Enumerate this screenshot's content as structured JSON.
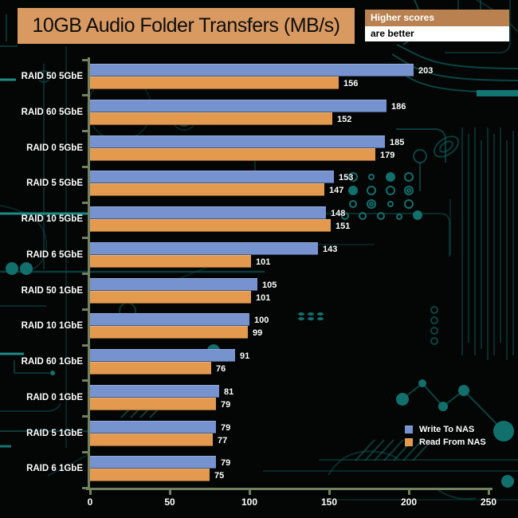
{
  "title": "10GB Audio Folder Transfers (MB/s)",
  "note": {
    "line1": "Higher scores",
    "line2": "are better"
  },
  "legend": {
    "write": "Write To NAS",
    "read": "Read From NAS"
  },
  "colors": {
    "write_bar": "#7793CF",
    "read_bar": "#E39A4E",
    "axis": "#72815F",
    "title_bg": "#D99A62",
    "note_top_bg": "#B8814F",
    "background": "#040505",
    "circuit_teal": "#0D5452"
  },
  "chart_data": {
    "type": "bar",
    "orientation": "horizontal",
    "title": "10GB Audio Folder Transfers (MB/s)",
    "categories": [
      "RAID 50 5GbE",
      "RAID 60 5GbE",
      "RAID 0 5GbE",
      "RAID 5 5GbE",
      "RAID 10 5GbE",
      "RAID 6 5GbE",
      "RAID 50 1GbE",
      "RAID 10 1GbE",
      "RAID 60 1GbE",
      "RAID 0 1GbE",
      "RAID 5 1GbE",
      "RAID 6 1GbE"
    ],
    "series": [
      {
        "name": "Write To NAS",
        "color": "#7793CF",
        "values": [
          203,
          186,
          185,
          153,
          148,
          143,
          105,
          100,
          91,
          81,
          79,
          79
        ]
      },
      {
        "name": "Read From NAS",
        "color": "#E39A4E",
        "values": [
          156,
          152,
          179,
          147,
          151,
          101,
          101,
          99,
          76,
          79,
          77,
          75
        ]
      }
    ],
    "xlim": [
      0,
      250
    ],
    "xticks": [
      0,
      50,
      100,
      150,
      200,
      250
    ],
    "grid": false,
    "value_labels": true,
    "legend_position": "bottom-right"
  }
}
